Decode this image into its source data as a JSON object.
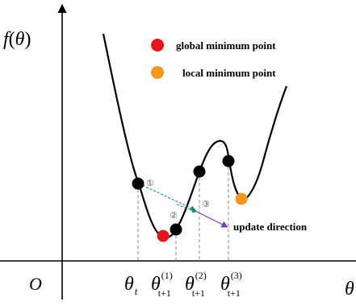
{
  "axes": {
    "y_label": {
      "func": "f",
      "open": "(",
      "var": "θ",
      "close": ")"
    },
    "origin_label": "O",
    "x_label": "θ"
  },
  "legend": {
    "items": [
      {
        "label": "global minimum point",
        "color": "#e8141c"
      },
      {
        "label": "local minimum point",
        "color": "#f5961e"
      }
    ]
  },
  "update_direction_label": "update direction",
  "ticks": [
    {
      "symbol": "θ",
      "sub": "t",
      "sup": ""
    },
    {
      "symbol": "θ",
      "sub": "t+1",
      "sup": "(1)"
    },
    {
      "symbol": "θ",
      "sub": "t+1",
      "sup": "(2)"
    },
    {
      "symbol": "θ",
      "sub": "t+1",
      "sup": "(3)"
    }
  ],
  "steps": [
    "①",
    "②",
    "③"
  ],
  "colors": {
    "curve": "#000000",
    "global_min": "#e8141c",
    "local_min": "#f5961e",
    "step_arrow": "#1a8a7a",
    "update_arrow": "#7a3db0"
  }
}
